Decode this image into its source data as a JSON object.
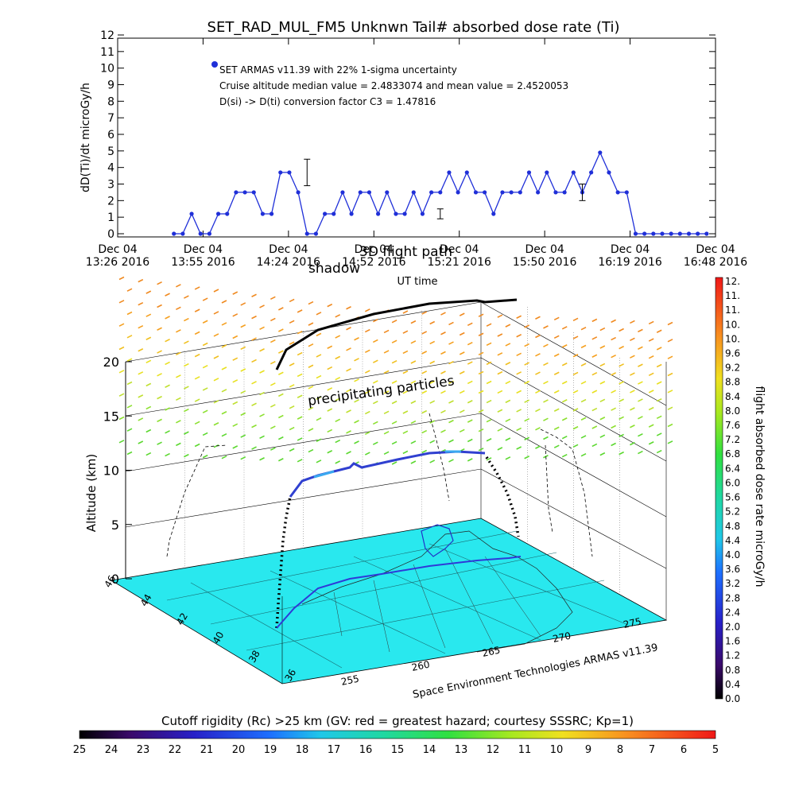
{
  "chart_data": [
    {
      "type": "line",
      "title": "SET_RAD_MUL_FM5 Unknwn Tail#  absorbed dose rate (Ti)",
      "ylabel": "dD(Ti)/dt microGy/h",
      "xlabel": "UT time",
      "ylim": [
        0,
        12
      ],
      "yticks": [
        "0",
        "1",
        "2",
        "3",
        "4",
        "5",
        "6",
        "7",
        "8",
        "9",
        "10",
        "11",
        "12"
      ],
      "xticks": [
        {
          "l1": "Dec 04",
          "l2": "13:26  2016"
        },
        {
          "l1": "Dec 04",
          "l2": "13:55  2016"
        },
        {
          "l1": "Dec 04",
          "l2": "14:24  2016"
        },
        {
          "l1": "Dec 04",
          "l2": "14:52  2016"
        },
        {
          "l1": "Dec 04",
          "l2": "15:21  2016"
        },
        {
          "l1": "Dec 04",
          "l2": "15:50  2016"
        },
        {
          "l1": "Dec 04",
          "l2": "16:19  2016"
        },
        {
          "l1": "Dec 04",
          "l2": "16:48  2016"
        }
      ],
      "xmin": "13:26",
      "xmax": "16:48",
      "annotations": [
        "SET ARMAS v11.39 with 22% 1-sigma uncertainty",
        "Cruise altitude median value = 2.4833074 and mean value = 2.4520053",
        "D(si) -> D(ti) conversion factor C3 = 1.47816"
      ],
      "series": [
        {
          "name": "SET ARMAS v11.39 with 22% 1-sigma uncertainty",
          "color": "#1f2fd8",
          "x": [
            "13:45",
            "13:48",
            "13:51",
            "13:54",
            "13:57",
            "14:00",
            "14:03",
            "14:06",
            "14:09",
            "14:12",
            "14:15",
            "14:18",
            "14:21",
            "14:24",
            "14:27",
            "14:30",
            "14:33",
            "14:36",
            "14:39",
            "14:42",
            "14:45",
            "14:48",
            "14:51",
            "14:54",
            "14:57",
            "15:00",
            "15:03",
            "15:06",
            "15:09",
            "15:12",
            "15:15",
            "15:18",
            "15:21",
            "15:24",
            "15:27",
            "15:30",
            "15:33",
            "15:36",
            "15:39",
            "15:42",
            "15:45",
            "15:48",
            "15:51",
            "15:54",
            "15:57",
            "16:00",
            "16:03",
            "16:06",
            "16:09",
            "16:12",
            "16:15",
            "16:18",
            "16:21",
            "16:24",
            "16:27",
            "16:30",
            "16:33",
            "16:36",
            "16:39",
            "16:42",
            "16:45"
          ],
          "y": [
            0,
            0,
            1.2,
            0,
            0,
            1.2,
            1.2,
            2.5,
            2.5,
            2.5,
            1.2,
            1.2,
            3.7,
            3.7,
            2.5,
            0,
            0,
            1.2,
            1.2,
            2.5,
            1.2,
            2.5,
            2.5,
            1.2,
            2.5,
            1.2,
            1.2,
            2.5,
            1.2,
            2.5,
            2.5,
            3.7,
            2.5,
            3.7,
            2.5,
            2.5,
            1.2,
            2.5,
            2.5,
            2.5,
            3.7,
            2.5,
            3.7,
            2.5,
            2.5,
            3.7,
            2.5,
            3.7,
            4.9,
            3.7,
            2.5,
            2.5,
            0,
            0,
            0,
            0,
            0,
            0,
            0,
            0,
            0
          ]
        }
      ],
      "error_bars": [
        {
          "x": "14:30",
          "y": 3.7,
          "err": 0.8
        },
        {
          "x": "15:15",
          "y": 1.2,
          "err": 0.3
        },
        {
          "x": "16:03",
          "y": 2.5,
          "err": 0.5
        }
      ]
    },
    {
      "type": "scatter",
      "zlabel": "Altitude (km)",
      "zticks": [
        "0",
        "5",
        "10",
        "15",
        "20"
      ],
      "lat_ticks": [
        "46",
        "44",
        "42",
        "40",
        "38",
        "36"
      ],
      "lon_ticks": [
        "255",
        "260",
        "265",
        "270",
        "275"
      ],
      "annotations": [
        "shadow",
        "3D flight path",
        "precipitating particles"
      ],
      "credit": "Space Environment Technologies ARMAS v11.39",
      "colorbar": {
        "label": "flight absorbed dose rate microGy/h",
        "ticks": [
          "0.0",
          "0.4",
          "0.8",
          "1.2",
          "1.6",
          "2.0",
          "2.4",
          "2.8",
          "3.2",
          "3.6",
          "4.0",
          "4.4",
          "4.8",
          "5.2",
          "5.6",
          "6.0",
          "6.4",
          "6.8",
          "7.2",
          "7.6",
          "8.0",
          "8.4",
          "8.8",
          "9.2",
          "9.6",
          "10.",
          "10.",
          "11.",
          "11.",
          "12."
        ]
      },
      "surface_color": "#29e8ee"
    },
    {
      "type": "heatmap",
      "title": "Cutoff rigidity (Rc) >25 km (GV: red = greatest hazard; courtesy SSSRC; Kp=1)",
      "ticks": [
        "25",
        "24",
        "23",
        "22",
        "21",
        "20",
        "19",
        "18",
        "17",
        "16",
        "15",
        "14",
        "13",
        "12",
        "11",
        "10",
        "9",
        "8",
        "7",
        "6",
        "5"
      ]
    }
  ]
}
